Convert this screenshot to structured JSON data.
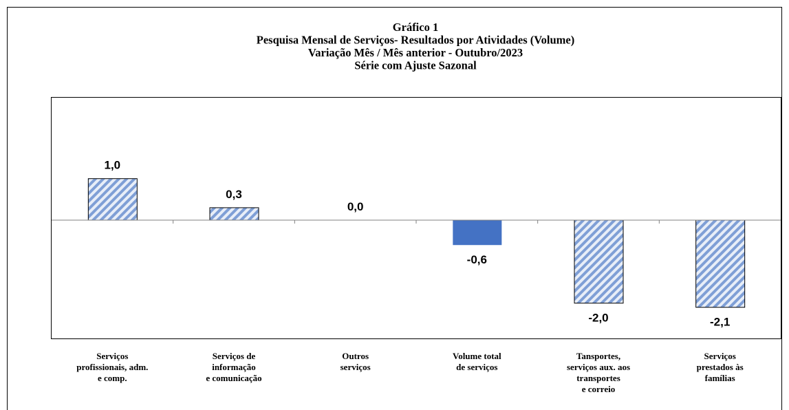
{
  "chart_data": {
    "type": "bar",
    "title": [
      "Gráfico 1",
      "Pesquisa Mensal de Serviços- Resultados por Atividades (Volume)",
      "Variação Mês / Mês anterior - Outubro/2023",
      "Série com Ajuste Sazonal"
    ],
    "categories": [
      "Serviços\nprofissionais,  adm.\ne comp.",
      "Serviços de\ninformação\ne comunicação",
      "Outros\nserviços",
      "Volume total\nde serviços",
      "Tansportes,\nserviços aux. aos\ntransportes\ne correio",
      "Serviços\nprestados às\nfamílias"
    ],
    "values": [
      1.0,
      0.3,
      0.0,
      -0.6,
      -2.0,
      -2.1
    ],
    "value_labels": [
      "1,0",
      "0,3",
      "0,0",
      "-0,6",
      "-2,0",
      "-2,1"
    ],
    "colors": [
      "#4472c4",
      "#4472c4",
      "#4472c4",
      "#4472c4",
      "#4472c4",
      "#4472c4"
    ],
    "patterns": [
      "hatched",
      "hatched",
      "hatched",
      "solid",
      "hatched",
      "hatched"
    ],
    "ylim": [
      -2.85,
      2.95
    ]
  }
}
